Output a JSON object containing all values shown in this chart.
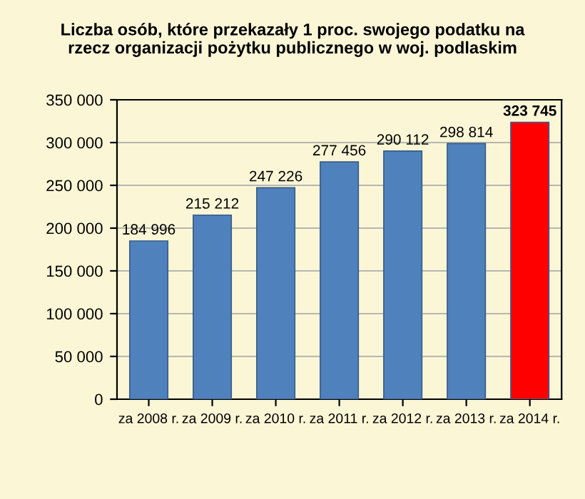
{
  "chart_data": {
    "type": "bar",
    "title": "Liczba osób, które przekazały 1 proc. swojego podatku na\nrzecz organizacji pożytku publicznego w woj. podlaskim",
    "categories": [
      "za 2008 r.",
      "za 2009 r.",
      "za 2010 r.",
      "za 2011 r.",
      "za 2012 r.",
      "za 2013 r.",
      "za 2014 r."
    ],
    "values": [
      184996,
      215212,
      247226,
      277456,
      290112,
      298814,
      323745
    ],
    "colors": [
      "#4f81bd",
      "#4f81bd",
      "#4f81bd",
      "#4f81bd",
      "#4f81bd",
      "#4f81bd",
      "#ff0000"
    ],
    "value_labels": [
      "184 996",
      "215 212",
      "247 226",
      "277 456",
      "290 112",
      "298 814",
      "323 745"
    ],
    "ylim": [
      0,
      350000
    ],
    "yticks": [
      {
        "value": 0,
        "label": "0"
      },
      {
        "value": 50000,
        "label": "50 000"
      },
      {
        "value": 100000,
        "label": "100 000"
      },
      {
        "value": 150000,
        "label": "150 000"
      },
      {
        "value": 200000,
        "label": "200 000"
      },
      {
        "value": 250000,
        "label": "250 000"
      },
      {
        "value": 300000,
        "label": "300 000"
      },
      {
        "value": 350000,
        "label": "350 000"
      }
    ],
    "grid": "y"
  }
}
